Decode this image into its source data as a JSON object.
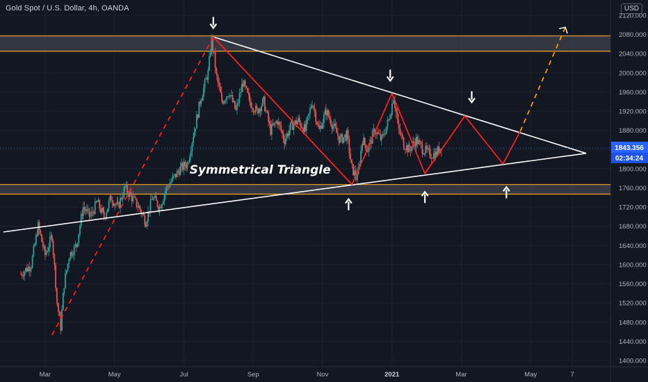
{
  "header": {
    "title": "Gold Spot / U.S. Dollar, 4h, OANDA",
    "currency": "USD"
  },
  "price": {
    "current": "1843.356",
    "countdown": "02:34:24"
  },
  "colors": {
    "background": "#131722",
    "grid": "#1e222d",
    "up": "#26a69a",
    "down": "#ef5350",
    "zone": "#3a3d47",
    "zone_border": "#f5a623",
    "trendline": "#ffffff",
    "pattern": "#ff1f1f",
    "projection": "#ff9800",
    "price_tag": "#2962ff"
  },
  "chart_data": {
    "type": "candlestick",
    "title": "Gold Spot / U.S. Dollar, 4h, OANDA",
    "ylim": [
      1400,
      2120
    ],
    "y_ticks": [
      "1400.000",
      "1440.000",
      "1480.000",
      "1520.000",
      "1560.000",
      "1600.000",
      "1640.000",
      "1680.000",
      "1720.000",
      "1760.000",
      "1800.000",
      "1840.000",
      "1880.000",
      "1920.000",
      "1960.000",
      "2000.000",
      "2040.000",
      "2080.000",
      "2120.000"
    ],
    "x_ticks": [
      {
        "label": "Mar",
        "t": 1.0,
        "bold": false
      },
      {
        "label": "May",
        "t": 3.0,
        "bold": false
      },
      {
        "label": "Jul",
        "t": 5.0,
        "bold": false
      },
      {
        "label": "Sep",
        "t": 7.0,
        "bold": false
      },
      {
        "label": "Nov",
        "t": 9.0,
        "bold": false
      },
      {
        "label": "2021",
        "t": 11.0,
        "bold": true
      },
      {
        "label": "Mar",
        "t": 13.0,
        "bold": false
      },
      {
        "label": "May",
        "t": 15.0,
        "bold": false
      },
      {
        "label": "7",
        "t": 16.2,
        "bold": false
      }
    ],
    "annotation": "Symmetrical Triangle",
    "price_path": [
      [
        0.3,
        1580
      ],
      [
        0.6,
        1600
      ],
      [
        0.8,
        1680
      ],
      [
        1.0,
        1620
      ],
      [
        1.2,
        1660
      ],
      [
        1.35,
        1520
      ],
      [
        1.45,
        1470
      ],
      [
        1.55,
        1560
      ],
      [
        1.7,
        1620
      ],
      [
        1.9,
        1640
      ],
      [
        2.1,
        1720
      ],
      [
        2.3,
        1700
      ],
      [
        2.5,
        1730
      ],
      [
        2.7,
        1700
      ],
      [
        2.9,
        1740
      ],
      [
        3.1,
        1720
      ],
      [
        3.3,
        1760
      ],
      [
        3.5,
        1740
      ],
      [
        3.7,
        1720
      ],
      [
        3.9,
        1690
      ],
      [
        4.1,
        1740
      ],
      [
        4.3,
        1720
      ],
      [
        4.5,
        1760
      ],
      [
        4.7,
        1780
      ],
      [
        4.9,
        1800
      ],
      [
        5.1,
        1810
      ],
      [
        5.3,
        1880
      ],
      [
        5.5,
        1950
      ],
      [
        5.7,
        2000
      ],
      [
        5.8,
        2070
      ],
      [
        5.95,
        1990
      ],
      [
        6.1,
        1940
      ],
      [
        6.3,
        1960
      ],
      [
        6.5,
        1920
      ],
      [
        6.7,
        1980
      ],
      [
        6.9,
        1940
      ],
      [
        7.1,
        1920
      ],
      [
        7.3,
        1940
      ],
      [
        7.5,
        1880
      ],
      [
        7.7,
        1900
      ],
      [
        7.9,
        1860
      ],
      [
        8.1,
        1890
      ],
      [
        8.3,
        1900
      ],
      [
        8.5,
        1880
      ],
      [
        8.7,
        1940
      ],
      [
        8.9,
        1880
      ],
      [
        9.1,
        1920
      ],
      [
        9.3,
        1890
      ],
      [
        9.5,
        1860
      ],
      [
        9.7,
        1870
      ],
      [
        9.85,
        1800
      ],
      [
        10.0,
        1780
      ],
      [
        10.15,
        1860
      ],
      [
        10.3,
        1840
      ],
      [
        10.5,
        1880
      ],
      [
        10.7,
        1860
      ],
      [
        10.9,
        1900
      ],
      [
        11.05,
        1950
      ],
      [
        11.2,
        1880
      ],
      [
        11.35,
        1850
      ],
      [
        11.5,
        1840
      ],
      [
        11.7,
        1860
      ],
      [
        11.9,
        1840
      ],
      [
        12.1,
        1830
      ],
      [
        12.25,
        1830
      ],
      [
        12.45,
        1850
      ]
    ],
    "zones": [
      {
        "low": 2045,
        "high": 2077
      },
      {
        "low": 1747,
        "high": 1767
      }
    ],
    "trendlines": [
      {
        "points": [
          [
            5.85,
            2075
          ],
          [
            16.6,
            1832
          ]
        ]
      },
      {
        "points": [
          [
            -0.2,
            1668
          ],
          [
            16.6,
            1832
          ]
        ]
      }
    ],
    "pattern_lines": [
      {
        "style": "dashed",
        "points": [
          [
            1.2,
            1453
          ],
          [
            5.85,
            2075
          ]
        ]
      },
      {
        "style": "solid",
        "points": [
          [
            5.85,
            2075
          ],
          [
            9.85,
            1767
          ],
          [
            11.0,
            1957
          ],
          [
            11.95,
            1790
          ],
          [
            13.1,
            1910
          ],
          [
            14.2,
            1810
          ],
          [
            14.7,
            1878
          ]
        ]
      }
    ],
    "projection": {
      "style": "dashed",
      "points": [
        [
          14.7,
          1878
        ],
        [
          16.0,
          2095
        ]
      ]
    },
    "arrows": [
      {
        "direction": "down",
        "t": 5.85,
        "y": 2105
      },
      {
        "direction": "down",
        "t": 10.95,
        "y": 1995
      },
      {
        "direction": "down",
        "t": 13.3,
        "y": 1950
      },
      {
        "direction": "up",
        "t": 9.75,
        "y": 1725
      },
      {
        "direction": "up",
        "t": 11.95,
        "y": 1740
      },
      {
        "direction": "up",
        "t": 14.3,
        "y": 1750
      }
    ]
  }
}
